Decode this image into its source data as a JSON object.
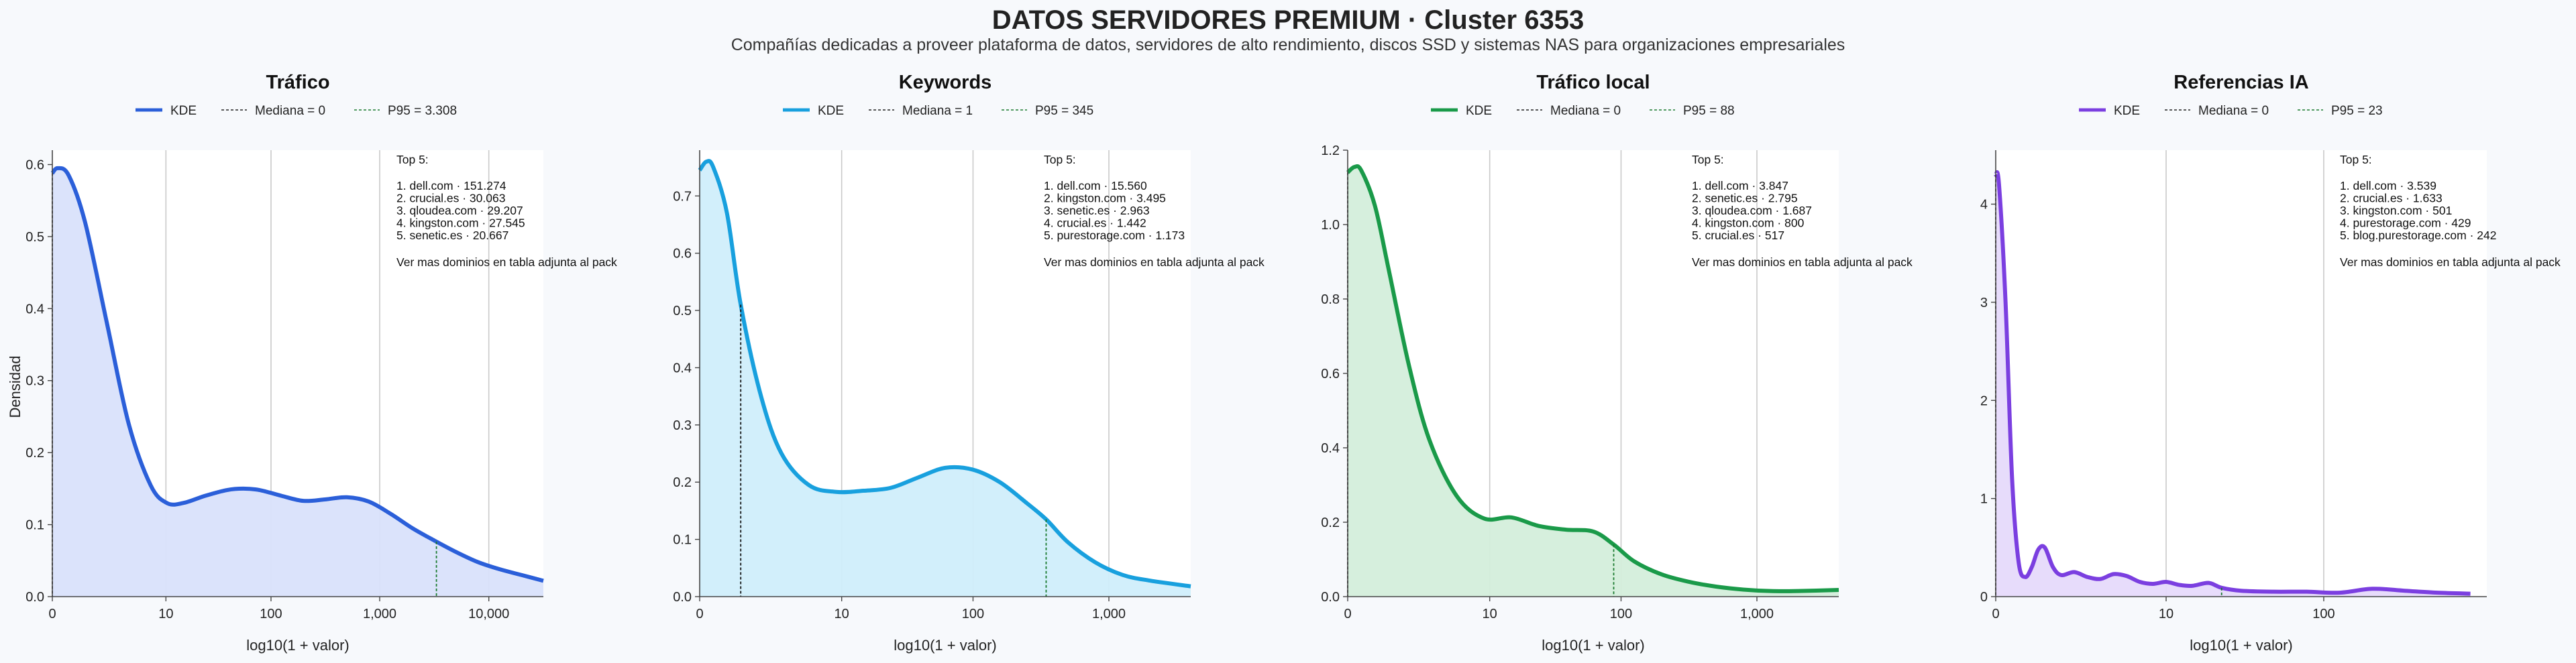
{
  "title": "DATOS SERVIDORES PREMIUM · Cluster 6353",
  "subtitle": "Compañías dedicadas a proveer plataforma de datos, servidores de alto rendimiento, discos SSD y sistemas NAS para organizaciones empresariales",
  "chart_data": [
    {
      "type": "area",
      "title": "Tráfico",
      "color": "#2b5fd9",
      "fill": "#d9e2fb",
      "legend": {
        "kde": "KDE",
        "median": "Mediana = 0",
        "p95": "P95 = 3.308"
      },
      "xlabel": "log10(1 + valor)",
      "ylabel": "Densidad",
      "xlim": [
        0,
        4.5
      ],
      "ylim": [
        0,
        0.62
      ],
      "x_ticks": [
        {
          "pos": 0,
          "label": "0"
        },
        {
          "pos": 1.041,
          "label": "10"
        },
        {
          "pos": 2.004,
          "label": "100"
        },
        {
          "pos": 3.0,
          "label": "1,000"
        },
        {
          "pos": 4.0,
          "label": "10,000"
        }
      ],
      "y_ticks": [
        0,
        0.1,
        0.2,
        0.3,
        0.4,
        0.5,
        0.6
      ],
      "y_tick_labels": [
        "0.0",
        "0.1",
        "0.2",
        "0.3",
        "0.4",
        "0.5",
        "0.6"
      ],
      "median": 0,
      "p95": 3.52,
      "x": [
        0,
        0.05,
        0.15,
        0.3,
        0.5,
        0.7,
        0.9,
        1.05,
        1.2,
        1.4,
        1.6,
        1.75,
        1.9,
        2.1,
        2.3,
        2.5,
        2.7,
        2.9,
        3.1,
        3.3,
        3.5,
        3.7,
        3.9,
        4.1,
        4.3,
        4.5
      ],
      "y": [
        0.588,
        0.595,
        0.585,
        0.52,
        0.38,
        0.24,
        0.155,
        0.13,
        0.13,
        0.14,
        0.148,
        0.15,
        0.148,
        0.14,
        0.133,
        0.135,
        0.138,
        0.132,
        0.115,
        0.095,
        0.078,
        0.062,
        0.048,
        0.038,
        0.03,
        0.022
      ],
      "top5_header": "Top 5:",
      "top5": [
        "1. dell.com · 151.274",
        "2. crucial.es · 30.063",
        "3. qloudea.com · 29.207",
        "4. kingston.com · 27.545",
        "5. senetic.es · 20.667"
      ],
      "footer_note": "Ver mas dominios en tabla adjunta al pack"
    },
    {
      "type": "area",
      "title": "Keywords",
      "color": "#18a0de",
      "fill": "#d0eefb",
      "legend": {
        "kde": "KDE",
        "median": "Mediana = 1",
        "p95": "P95 = 345"
      },
      "xlabel": "log10(1 + valor)",
      "ylabel": "",
      "xlim": [
        0,
        3.6
      ],
      "ylim": [
        0,
        0.78
      ],
      "x_ticks": [
        {
          "pos": 0,
          "label": "0"
        },
        {
          "pos": 1.041,
          "label": "10"
        },
        {
          "pos": 2.004,
          "label": "100"
        },
        {
          "pos": 3.0,
          "label": "1,000"
        }
      ],
      "y_ticks": [
        0,
        0.1,
        0.2,
        0.3,
        0.4,
        0.5,
        0.6,
        0.7
      ],
      "y_tick_labels": [
        "0.0",
        "0.1",
        "0.2",
        "0.3",
        "0.4",
        "0.5",
        "0.6",
        "0.7"
      ],
      "median": 0.301,
      "p95": 2.54,
      "x": [
        0,
        0.05,
        0.1,
        0.2,
        0.301,
        0.45,
        0.6,
        0.8,
        1.0,
        1.2,
        1.4,
        1.6,
        1.8,
        2.0,
        2.2,
        2.4,
        2.54,
        2.7,
        2.9,
        3.1,
        3.3,
        3.6
      ],
      "y": [
        0.745,
        0.76,
        0.75,
        0.67,
        0.51,
        0.35,
        0.25,
        0.195,
        0.183,
        0.185,
        0.19,
        0.208,
        0.225,
        0.222,
        0.2,
        0.163,
        0.135,
        0.095,
        0.06,
        0.038,
        0.028,
        0.018
      ],
      "top5_header": "Top 5:",
      "top5": [
        "1. dell.com · 15.560",
        "2. kingston.com · 3.495",
        "3. senetic.es · 2.963",
        "4. crucial.es · 1.442",
        "5. purestorage.com · 1.173"
      ],
      "footer_note": "Ver mas dominios en tabla adjunta al pack"
    },
    {
      "type": "area",
      "title": "Tráfico local",
      "color": "#1a9a49",
      "fill": "#d4eedb",
      "legend": {
        "kde": "KDE",
        "median": "Mediana = 0",
        "p95": "P95 = 88"
      },
      "xlabel": "log10(1 + valor)",
      "ylabel": "",
      "xlim": [
        0,
        3.6
      ],
      "ylim": [
        0,
        1.2
      ],
      "x_ticks": [
        {
          "pos": 0,
          "label": "0"
        },
        {
          "pos": 1.041,
          "label": "10"
        },
        {
          "pos": 2.004,
          "label": "100"
        },
        {
          "pos": 3.0,
          "label": "1,000"
        }
      ],
      "y_ticks": [
        0,
        0.2,
        0.4,
        0.6,
        0.8,
        1.0,
        1.2
      ],
      "y_tick_labels": [
        "0.0",
        "0.2",
        "0.4",
        "0.6",
        "0.8",
        "1.0",
        "1.2"
      ],
      "median": 0,
      "p95": 1.95,
      "x": [
        0,
        0.05,
        0.1,
        0.2,
        0.3,
        0.45,
        0.6,
        0.8,
        1.0,
        1.2,
        1.4,
        1.6,
        1.8,
        1.95,
        2.1,
        2.3,
        2.5,
        2.7,
        2.9,
        3.1,
        3.3,
        3.6
      ],
      "y": [
        1.14,
        1.155,
        1.145,
        1.05,
        0.88,
        0.62,
        0.42,
        0.27,
        0.21,
        0.213,
        0.19,
        0.18,
        0.175,
        0.14,
        0.095,
        0.06,
        0.04,
        0.027,
        0.019,
        0.015,
        0.015,
        0.018
      ],
      "top5_header": "Top 5:",
      "top5": [
        "1. dell.com · 3.847",
        "2. senetic.es · 2.795",
        "3. qloudea.com · 1.687",
        "4. kingston.com · 800",
        "5. crucial.es · 517"
      ],
      "footer_note": "Ver mas dominios en tabla adjunta al pack"
    },
    {
      "type": "area",
      "title": "Referencias IA",
      "color": "#7b3fe0",
      "fill": "#e6dafb",
      "legend": {
        "kde": "KDE",
        "median": "Mediana = 0",
        "p95": "P95 = 23"
      },
      "xlabel": "log10(1 + valor)",
      "ylabel": "",
      "xlim": [
        0,
        3.0
      ],
      "ylim": [
        0,
        4.55
      ],
      "x_ticks": [
        {
          "pos": 0,
          "label": "0"
        },
        {
          "pos": 1.041,
          "label": "10"
        },
        {
          "pos": 2.004,
          "label": "100"
        }
      ],
      "y_ticks": [
        0,
        1,
        2,
        3,
        4
      ],
      "y_tick_labels": [
        "0",
        "1",
        "2",
        "3",
        "4"
      ],
      "median": 0,
      "p95": 1.38,
      "x": [
        0,
        0.02,
        0.06,
        0.1,
        0.14,
        0.18,
        0.22,
        0.26,
        0.3,
        0.35,
        0.4,
        0.48,
        0.56,
        0.64,
        0.72,
        0.8,
        0.88,
        0.96,
        1.04,
        1.12,
        1.2,
        1.3,
        1.38,
        1.5,
        1.7,
        1.9,
        2.1,
        2.3,
        2.5,
        2.7,
        2.9
      ],
      "y": [
        4.3,
        4.2,
        3.0,
        1.2,
        0.35,
        0.2,
        0.3,
        0.48,
        0.5,
        0.3,
        0.22,
        0.25,
        0.2,
        0.18,
        0.23,
        0.21,
        0.15,
        0.13,
        0.15,
        0.12,
        0.11,
        0.14,
        0.09,
        0.06,
        0.05,
        0.05,
        0.04,
        0.08,
        0.06,
        0.04,
        0.03
      ],
      "top5_header": "Top 5:",
      "top5": [
        "1. dell.com · 3.539",
        "2. crucial.es · 1.633",
        "3. kingston.com · 501",
        "4. purestorage.com · 429",
        "5. blog.purestorage.com · 242"
      ],
      "footer_note": "Ver mas dominios en tabla adjunta al pack"
    }
  ]
}
